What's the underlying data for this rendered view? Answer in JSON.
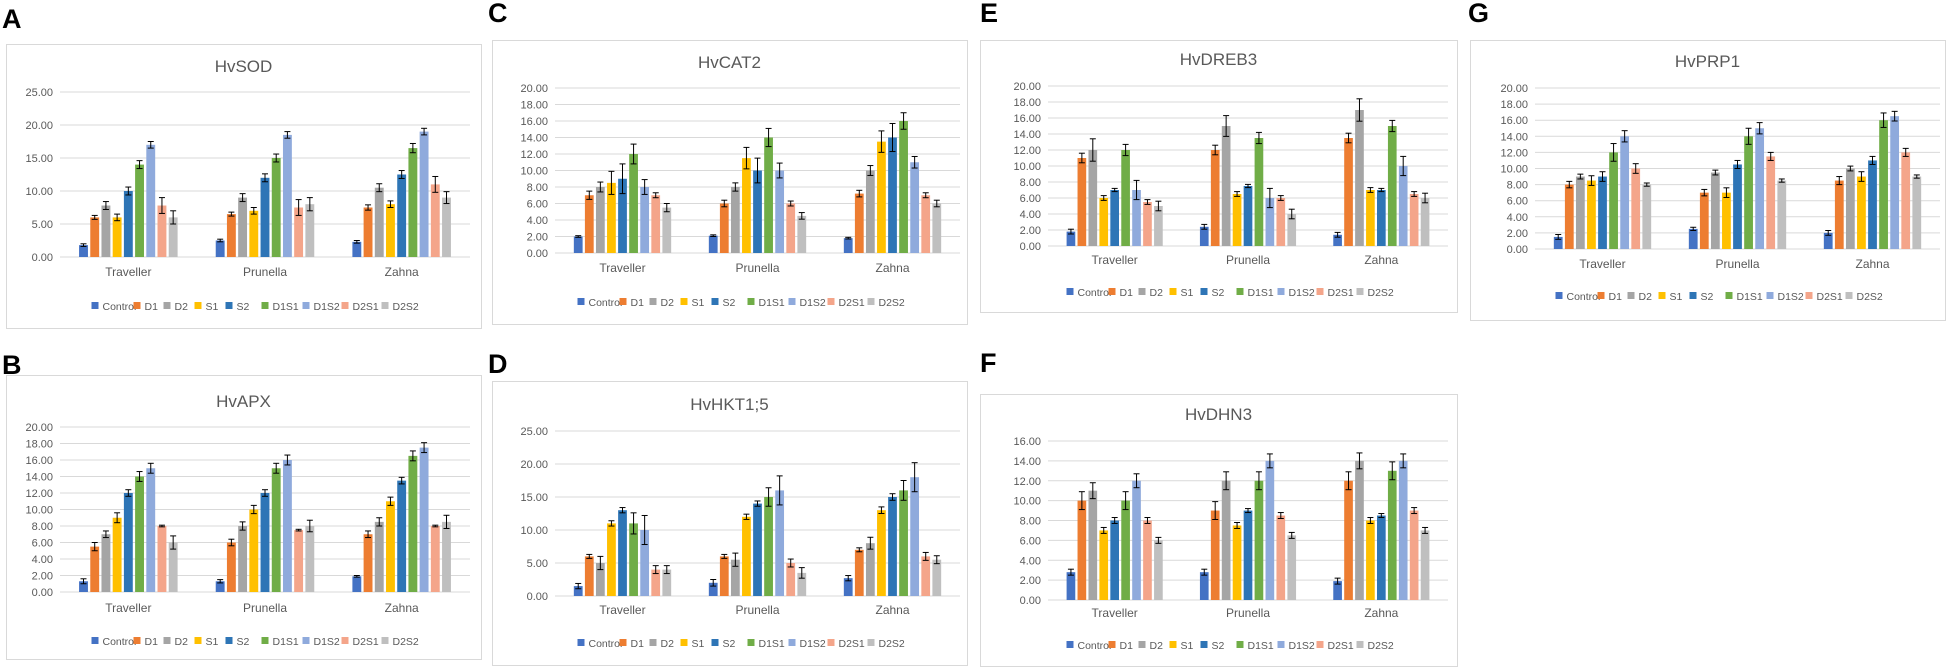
{
  "figure": {
    "legend": [
      "Control",
      "D1",
      "D2",
      "S1",
      "S2",
      "D1S1",
      "D1S2",
      "D2S1",
      "D2S2"
    ],
    "colors": [
      "#4472C4",
      "#ED7D31",
      "#A5A5A5",
      "#FFC000",
      "#2E75B6",
      "#70AD47",
      "#8FAADC",
      "#F4A58A",
      "#BFBFBF"
    ],
    "border_color": "#D9D9D9",
    "grid_color": "#D9D9D9",
    "text_color": "#595959",
    "panel_letter_color": "#000000"
  },
  "chart_data": [
    {
      "letter": "A",
      "title": "HvSOD",
      "type": "bar",
      "categories": [
        "Traveller",
        "Prunella",
        "Zahna"
      ],
      "yticks": [
        "0.00",
        "5.00",
        "10.00",
        "15.00",
        "20.00",
        "25.00"
      ],
      "ylim": [
        0,
        25
      ],
      "values": [
        [
          1.8,
          6.0,
          7.8,
          6.0,
          10.0,
          14.0,
          17.0,
          7.8,
          6.0
        ],
        [
          2.5,
          6.5,
          9.0,
          7.0,
          12.0,
          15.0,
          18.5,
          7.5,
          8.0
        ],
        [
          2.3,
          7.5,
          10.5,
          8.0,
          12.5,
          16.5,
          19.0,
          11.0,
          9.0
        ]
      ],
      "errors": [
        [
          0.2,
          0.3,
          0.6,
          0.5,
          0.6,
          0.6,
          0.5,
          1.2,
          1.0
        ],
        [
          0.2,
          0.3,
          0.6,
          0.5,
          0.6,
          0.6,
          0.5,
          1.2,
          1.0
        ],
        [
          0.2,
          0.4,
          0.6,
          0.5,
          0.6,
          0.7,
          0.5,
          1.2,
          0.9
        ]
      ]
    },
    {
      "letter": "B",
      "title": "HvAPX",
      "type": "bar",
      "categories": [
        "Traveller",
        "Prunella",
        "Zahna"
      ],
      "yticks": [
        "0.00",
        "2.00",
        "4.00",
        "6.00",
        "8.00",
        "10.00",
        "12.00",
        "14.00",
        "16.00",
        "18.00",
        "20.00"
      ],
      "ylim": [
        0,
        20
      ],
      "values": [
        [
          1.3,
          5.5,
          7.0,
          9.0,
          12.0,
          14.0,
          15.0,
          8.0,
          6.0
        ],
        [
          1.3,
          6.0,
          8.0,
          10.0,
          12.0,
          15.0,
          16.0,
          7.5,
          8.0
        ],
        [
          1.9,
          7.0,
          8.5,
          11.0,
          13.5,
          16.5,
          17.5,
          8.0,
          8.5
        ]
      ],
      "errors": [
        [
          0.3,
          0.5,
          0.4,
          0.6,
          0.4,
          0.6,
          0.6,
          0.1,
          0.8
        ],
        [
          0.2,
          0.4,
          0.5,
          0.5,
          0.4,
          0.6,
          0.6,
          0.1,
          0.7
        ],
        [
          0.1,
          0.4,
          0.5,
          0.5,
          0.4,
          0.6,
          0.6,
          0.1,
          0.8
        ]
      ]
    },
    {
      "letter": "C",
      "title": "HvCAT2",
      "type": "bar",
      "categories": [
        "Traveller",
        "Prunella",
        "Zahna"
      ],
      "yticks": [
        "0.00",
        "2.00",
        "4.00",
        "6.00",
        "8.00",
        "10.00",
        "12.00",
        "14.00",
        "16.00",
        "18.00",
        "20.00"
      ],
      "ylim": [
        0,
        20
      ],
      "values": [
        [
          2.0,
          7.0,
          8.0,
          8.5,
          9.0,
          12.0,
          8.0,
          7.0,
          5.5
        ],
        [
          2.1,
          6.0,
          8.0,
          11.5,
          10.0,
          14.0,
          10.0,
          6.0,
          4.5
        ],
        [
          1.8,
          7.2,
          10.0,
          13.5,
          14.0,
          16.0,
          11.0,
          7.0,
          6.0
        ]
      ],
      "errors": [
        [
          0.1,
          0.5,
          0.6,
          1.4,
          1.8,
          1.2,
          0.9,
          0.3,
          0.5
        ],
        [
          0.1,
          0.4,
          0.5,
          1.3,
          1.5,
          1.1,
          0.9,
          0.3,
          0.4
        ],
        [
          0.1,
          0.4,
          0.6,
          1.3,
          1.7,
          1.0,
          0.7,
          0.3,
          0.4
        ]
      ]
    },
    {
      "letter": "D",
      "title": "HvHKT1;5",
      "type": "bar",
      "categories": [
        "Traveller",
        "Prunella",
        "Zahna"
      ],
      "yticks": [
        "0.00",
        "5.00",
        "10.00",
        "15.00",
        "20.00",
        "25.00"
      ],
      "ylim": [
        0,
        25
      ],
      "values": [
        [
          1.5,
          6.0,
          5.0,
          11.0,
          13.0,
          11.0,
          10.0,
          4.0,
          4.0
        ],
        [
          2.0,
          6.0,
          5.5,
          12.0,
          14.0,
          15.0,
          16.0,
          5.0,
          3.5
        ],
        [
          2.7,
          7.0,
          8.0,
          13.0,
          15.0,
          16.0,
          18.0,
          6.0,
          5.5
        ]
      ],
      "errors": [
        [
          0.4,
          0.3,
          1.0,
          0.4,
          0.4,
          1.6,
          2.2,
          0.6,
          0.6
        ],
        [
          0.5,
          0.3,
          1.0,
          0.4,
          0.4,
          1.4,
          2.2,
          0.6,
          0.8
        ],
        [
          0.4,
          0.3,
          0.9,
          0.5,
          0.5,
          1.5,
          2.2,
          0.6,
          0.6
        ]
      ]
    },
    {
      "letter": "E",
      "title": "HvDREB3",
      "type": "bar",
      "categories": [
        "Traveller",
        "Prunella",
        "Zahna"
      ],
      "yticks": [
        "0.00",
        "2.00",
        "4.00",
        "6.00",
        "8.00",
        "10.00",
        "12.00",
        "14.00",
        "16.00",
        "18.00",
        "20.00"
      ],
      "ylim": [
        0,
        20
      ],
      "values": [
        [
          1.8,
          11.0,
          12.0,
          6.0,
          7.0,
          12.0,
          7.0,
          5.5,
          5.0
        ],
        [
          2.4,
          12.0,
          15.0,
          6.5,
          7.5,
          13.5,
          6.0,
          6.0,
          4.0
        ],
        [
          1.4,
          13.5,
          17.0,
          7.0,
          7.0,
          15.0,
          10.0,
          6.5,
          6.0
        ]
      ],
      "errors": [
        [
          0.3,
          0.6,
          1.4,
          0.3,
          0.2,
          0.7,
          1.2,
          0.3,
          0.6
        ],
        [
          0.3,
          0.6,
          1.3,
          0.3,
          0.2,
          0.7,
          1.2,
          0.3,
          0.6
        ],
        [
          0.3,
          0.6,
          1.4,
          0.3,
          0.2,
          0.7,
          1.2,
          0.3,
          0.6
        ]
      ]
    },
    {
      "letter": "F",
      "title": "HvDHN3",
      "type": "bar",
      "categories": [
        "Traveller",
        "Prunella",
        "Zahna"
      ],
      "yticks": [
        "0.00",
        "2.00",
        "4.00",
        "6.00",
        "8.00",
        "10.00",
        "12.00",
        "14.00",
        "16.00"
      ],
      "ylim": [
        0,
        16
      ],
      "values": [
        [
          2.8,
          10.0,
          11.0,
          7.0,
          8.0,
          10.0,
          12.0,
          8.0,
          6.0
        ],
        [
          2.8,
          9.0,
          12.0,
          7.5,
          9.0,
          12.0,
          14.0,
          8.5,
          6.5
        ],
        [
          1.9,
          12.0,
          14.0,
          8.0,
          8.5,
          13.0,
          14.0,
          9.0,
          7.0
        ]
      ],
      "errors": [
        [
          0.3,
          0.9,
          0.8,
          0.3,
          0.3,
          0.9,
          0.7,
          0.3,
          0.3
        ],
        [
          0.3,
          0.9,
          0.9,
          0.3,
          0.2,
          0.9,
          0.7,
          0.3,
          0.3
        ],
        [
          0.3,
          0.9,
          0.8,
          0.3,
          0.2,
          0.9,
          0.7,
          0.3,
          0.3
        ]
      ]
    },
    {
      "letter": "G",
      "title": "HvPRP1",
      "type": "bar",
      "categories": [
        "Traveller",
        "Prunella",
        "Zahna"
      ],
      "yticks": [
        "0.00",
        "2.00",
        "4.00",
        "6.00",
        "8.00",
        "10.00",
        "12.00",
        "14.00",
        "16.00",
        "18.00",
        "20.00"
      ],
      "ylim": [
        0,
        20
      ],
      "values": [
        [
          1.5,
          8.0,
          9.0,
          8.5,
          9.0,
          12.0,
          14.0,
          10.0,
          8.0
        ],
        [
          2.5,
          7.0,
          9.5,
          7.0,
          10.5,
          14.0,
          15.0,
          11.5,
          8.5
        ],
        [
          2.0,
          8.5,
          10.0,
          9.0,
          11.0,
          16.0,
          16.5,
          12.0,
          9.0
        ]
      ],
      "errors": [
        [
          0.3,
          0.4,
          0.3,
          0.6,
          0.6,
          1.1,
          0.7,
          0.6,
          0.2
        ],
        [
          0.2,
          0.4,
          0.3,
          0.6,
          0.5,
          1.0,
          0.7,
          0.5,
          0.2
        ],
        [
          0.3,
          0.5,
          0.3,
          0.6,
          0.5,
          0.9,
          0.6,
          0.5,
          0.2
        ]
      ]
    }
  ]
}
